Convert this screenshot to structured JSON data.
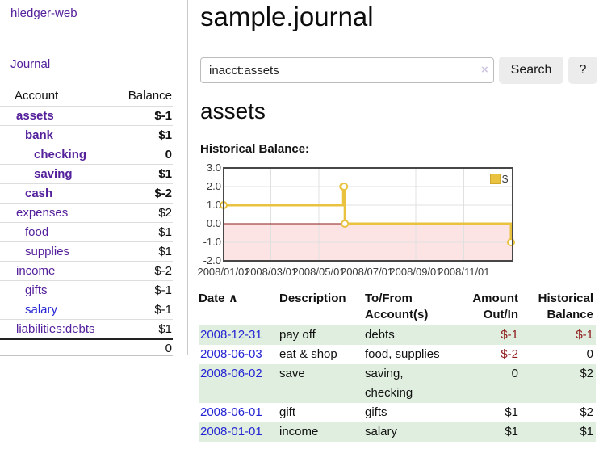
{
  "app": {
    "title": "hledger-web"
  },
  "nav": {
    "journal_label": "Journal"
  },
  "sidebar": {
    "accounts": {
      "headers": {
        "account": "Account",
        "balance": "Balance"
      },
      "rows": [
        {
          "label": "assets",
          "indent": 1,
          "bold": true,
          "color": "purple",
          "balance": "$-1",
          "balance_class": "neg"
        },
        {
          "label": "bank",
          "indent": 2,
          "bold": true,
          "color": "purple",
          "balance": "$1",
          "balance_class": ""
        },
        {
          "label": "checking",
          "indent": 3,
          "bold": true,
          "color": "purple",
          "balance": "0",
          "balance_class": ""
        },
        {
          "label": "saving",
          "indent": 3,
          "bold": true,
          "color": "purple",
          "balance": "$1",
          "balance_class": ""
        },
        {
          "label": "cash",
          "indent": 2,
          "bold": true,
          "color": "purple",
          "balance": "$-2",
          "balance_class": "neg"
        },
        {
          "label": "expenses",
          "indent": 1,
          "bold": false,
          "color": "purple",
          "balance": "$2",
          "balance_class": ""
        },
        {
          "label": "food",
          "indent": 2,
          "bold": false,
          "color": "purple",
          "balance": "$1",
          "balance_class": ""
        },
        {
          "label": "supplies",
          "indent": 2,
          "bold": false,
          "color": "purple",
          "balance": "$1",
          "balance_class": ""
        },
        {
          "label": "income",
          "indent": 1,
          "bold": false,
          "color": "purple",
          "balance": "$-2",
          "balance_class": "softneg"
        },
        {
          "label": "gifts",
          "indent": 2,
          "bold": false,
          "color": "purple",
          "balance": "$-1",
          "balance_class": "softneg"
        },
        {
          "label": "salary",
          "indent": 2,
          "bold": false,
          "color": "blue",
          "balance": "$-1",
          "balance_class": "softneg"
        },
        {
          "label": "liabilities:debts",
          "indent": 1,
          "bold": false,
          "color": "purple",
          "balance": "$1",
          "balance_class": ""
        }
      ],
      "total": "0"
    }
  },
  "header": {
    "title": "sample.journal"
  },
  "search": {
    "value": "inacct:assets",
    "clear_icon": "×",
    "button_label": "Search",
    "help_label": "?"
  },
  "account_page": {
    "heading": "assets",
    "chart_label": "Historical Balance:"
  },
  "chart_data": {
    "type": "line",
    "step": true,
    "title": "Historical Balance:",
    "legend_position": "top-right",
    "x_range_days": [
      0,
      365
    ],
    "ylim": [
      -2.0,
      3.0
    ],
    "y_ticks": [
      3.0,
      2.0,
      1.0,
      0.0,
      -1.0,
      -2.0
    ],
    "x_ticks": [
      {
        "day": 0,
        "label": "2008/01/01"
      },
      {
        "day": 60,
        "label": "2008/03/01"
      },
      {
        "day": 121,
        "label": "2008/05/01"
      },
      {
        "day": 182,
        "label": "2008/07/01"
      },
      {
        "day": 244,
        "label": "2008/09/01"
      },
      {
        "day": 305,
        "label": "2008/11/01"
      }
    ],
    "negative_region_below": 0,
    "series": [
      {
        "name": "$",
        "points": [
          {
            "date": "2008/01/01",
            "day": 0,
            "value": 1
          },
          {
            "date": "2008/06/01",
            "day": 152,
            "value": 2
          },
          {
            "date": "2008/06/02",
            "day": 153,
            "value": 2
          },
          {
            "date": "2008/06/03",
            "day": 154,
            "value": 0
          },
          {
            "date": "2008/12/31",
            "day": 365,
            "value": -1
          }
        ]
      }
    ]
  },
  "register": {
    "headers": {
      "date": "Date",
      "sort_arrow": "∧",
      "description": "Description",
      "tofrom_line1": "To/From",
      "tofrom_line2": "Account(s)",
      "amount_line1": "Amount",
      "amount_line2": "Out/In",
      "balance_line1": "Historical",
      "balance_line2": "Balance"
    },
    "rows": [
      {
        "date": "2008-12-31",
        "description": "pay off",
        "accounts": "debts",
        "amount": "$-1",
        "amount_class": "neg",
        "balance": "$-1",
        "balance_class": "neg"
      },
      {
        "date": "2008-06-03",
        "description": "eat & shop",
        "accounts": "food, supplies",
        "amount": "$-2",
        "amount_class": "neg",
        "balance": "0",
        "balance_class": ""
      },
      {
        "date": "2008-06-02",
        "description": "save",
        "accounts": "saving, checking",
        "amount": "0",
        "amount_class": "",
        "balance": "$2",
        "balance_class": ""
      },
      {
        "date": "2008-06-01",
        "description": "gift",
        "accounts": "gifts",
        "amount": "$1",
        "amount_class": "",
        "balance": "$2",
        "balance_class": ""
      },
      {
        "date": "2008-01-01",
        "description": "income",
        "accounts": "salary",
        "amount": "$1",
        "amount_class": "",
        "balance": "$1",
        "balance_class": ""
      }
    ]
  },
  "colors": {
    "link_purple": "#54209b",
    "link_blue": "#2525d4",
    "negative_strong": "#8f1c1c",
    "negative_soft": "#bb6a6a",
    "row_stripe_green": "#dfeede",
    "series_gold": "#e9c23f",
    "negative_area_pink": "#fce4e4",
    "zero_line_red": "#8b1a1a",
    "plot_border": "#474747",
    "button_gray": "#ececec"
  }
}
